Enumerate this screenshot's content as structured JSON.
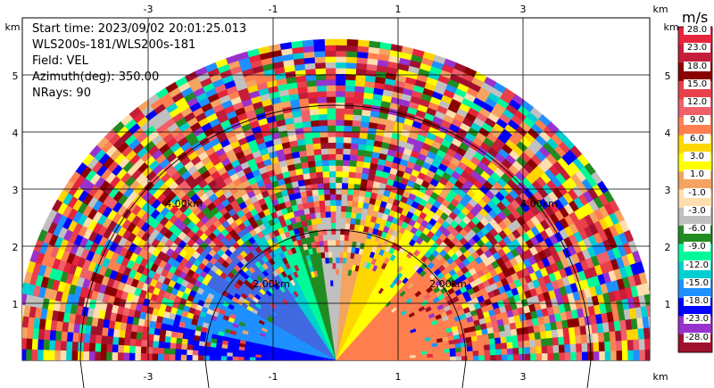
{
  "header": {
    "start_time": "Start time: 2023/09/02 20:01:25.013",
    "station": "WLS200s-181/WLS200s-181",
    "field": "Field: VEL",
    "azimuth": "Azimuth(deg): 350.00",
    "nrays": "NRays: 90"
  },
  "axes": {
    "unit": "km",
    "x_ticks": [
      "-3",
      "-1",
      "1",
      "3"
    ],
    "y_ticks": [
      "1",
      "2",
      "3",
      "4",
      "5"
    ]
  },
  "range_rings": [
    "2.00km",
    "2.00km",
    "4.00km",
    "4.00km"
  ],
  "colorbar": {
    "unit": "m/s",
    "levels": [
      "28.0",
      "23.0",
      "18.0",
      "15.0",
      "12.0",
      "9.0",
      "6.0",
      "3.0",
      "1.0",
      "-1.0",
      "-3.0",
      "-6.0",
      "-9.0",
      "-12.0",
      "-15.0",
      "-18.0",
      "-23.0",
      "-28.0"
    ],
    "colors": [
      "#e6253d",
      "#c41e3a",
      "#8b0000",
      "#e8414b",
      "#f0606a",
      "#ff7f50",
      "#ffd700",
      "#ffff00",
      "#f4a460",
      "#ffdead",
      "#c0c0c0",
      "#228b22",
      "#00fa9a",
      "#00ced1",
      "#1e90ff",
      "#0000ff",
      "#9932cc",
      "#a0102c"
    ]
  }
}
